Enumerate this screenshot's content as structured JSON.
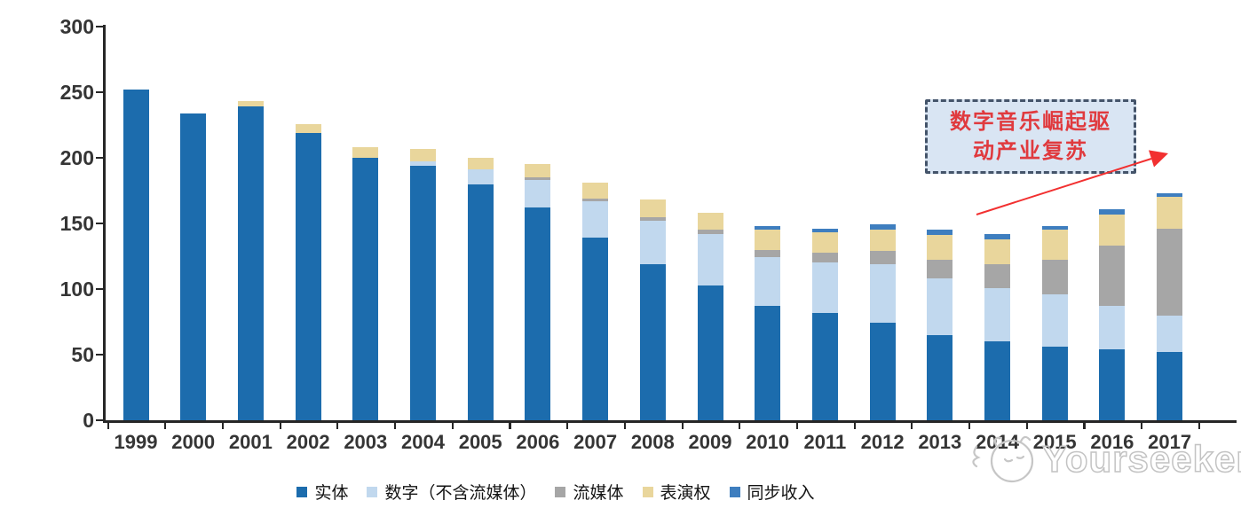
{
  "chart_data": {
    "type": "bar",
    "stacked": true,
    "categories": [
      "1999",
      "2000",
      "2001",
      "2002",
      "2003",
      "2004",
      "2005",
      "2006",
      "2007",
      "2008",
      "2009",
      "2010",
      "2011",
      "2012",
      "2013",
      "2014",
      "2015",
      "2016",
      "2017"
    ],
    "series": [
      {
        "key": "physical",
        "name": "实体",
        "color": "#1C6CAD",
        "values": [
          252,
          234,
          239,
          219,
          200,
          194,
          180,
          162,
          139,
          119,
          103,
          87,
          82,
          74,
          65,
          60,
          56,
          54,
          52
        ]
      },
      {
        "key": "digital-excl-streaming",
        "name": "数字（不含流媒体）",
        "color": "#C1D8EE",
        "values": [
          0,
          0,
          0,
          0,
          0,
          3,
          11,
          21,
          28,
          33,
          39,
          37,
          38,
          45,
          43,
          41,
          40,
          33,
          28
        ]
      },
      {
        "key": "streaming",
        "name": "流媒体",
        "color": "#A6A6A6",
        "values": [
          0,
          0,
          0,
          0,
          0,
          0,
          0,
          2,
          2,
          3,
          3,
          6,
          8,
          10,
          14,
          18,
          26,
          46,
          66
        ]
      },
      {
        "key": "performance-rights",
        "name": "表演权",
        "color": "#E9D69C",
        "values": [
          0,
          0,
          4,
          7,
          8,
          10,
          9,
          10,
          12,
          13,
          13,
          15,
          15,
          16,
          19,
          19,
          23,
          24,
          24
        ]
      },
      {
        "key": "sync-income",
        "name": "同步收入",
        "color": "#3E7EBF",
        "values": [
          0,
          0,
          0,
          0,
          0,
          0,
          0,
          0,
          0,
          0,
          0,
          3,
          3,
          4,
          4,
          4,
          3,
          4,
          3
        ]
      }
    ],
    "totals": [
      252,
      234,
      243,
      226,
      208,
      207,
      200,
      195,
      181,
      168,
      158,
      148,
      146,
      149,
      145,
      142,
      148,
      161,
      173
    ],
    "ylim": [
      0,
      300
    ],
    "yticks": [
      0,
      50,
      100,
      150,
      200,
      250,
      300
    ],
    "grid": false,
    "legend_position": "bottom",
    "axis_color": "#262626"
  },
  "annotation": {
    "line1": "数字音乐崛起驱",
    "line2": "动产业复苏",
    "text_color": "#E03A3E",
    "box_fill": "#D9E5F3",
    "box_border": "#44546A",
    "arrow_color": "#F23030"
  },
  "watermark": {
    "brand": "Yourseeker",
    "logo": "mascot-doodle-icon",
    "color": "#C3C3C3"
  }
}
